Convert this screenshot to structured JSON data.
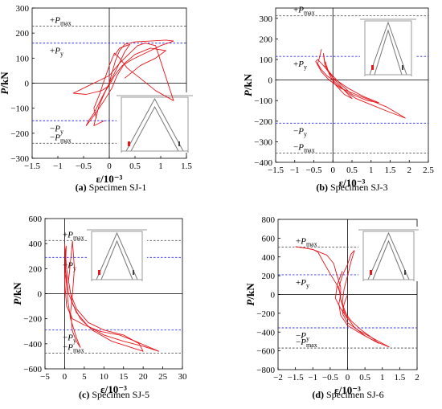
{
  "chart_data": [
    {
      "id": "a",
      "type": "line",
      "caption_letter": "(a)",
      "caption_text": " Specimen SJ-1",
      "ylabel": "P/kN",
      "xlabel": "ε/10⁻³",
      "xlim": [
        -1.5,
        1.5
      ],
      "ylim": [
        -300,
        300
      ],
      "xticks": [
        -1.5,
        -1,
        -0.5,
        0,
        0.5,
        1,
        1.5
      ],
      "yticks": [
        -300,
        -200,
        -100,
        0,
        100,
        200,
        300
      ],
      "series_color": "#e8151b",
      "reference_lines": [
        {
          "label": "+P",
          "sub": "max",
          "y": 228,
          "color": "#555555"
        },
        {
          "label": "+P",
          "sub": "y",
          "y": 160,
          "color": "#3333ee"
        },
        {
          "label": "−P",
          "sub": "y",
          "y": -150,
          "color": "#3333ee"
        },
        {
          "label": "−P",
          "sub": "max",
          "y": -240,
          "color": "#555555"
        }
      ],
      "series": [
        {
          "points": [
            [
              0,
              0
            ],
            [
              0.05,
              40
            ],
            [
              0.12,
              90
            ],
            [
              0.2,
              130
            ],
            [
              0.3,
              155
            ],
            [
              0.5,
              165
            ],
            [
              0.8,
              168
            ],
            [
              1.1,
              172
            ],
            [
              1.25,
              168
            ]
          ]
        },
        {
          "points": [
            [
              1.25,
              168
            ],
            [
              1.0,
              150
            ],
            [
              0.7,
              120
            ],
            [
              0.45,
              95
            ],
            [
              0.25,
              70
            ],
            [
              0.1,
              30
            ],
            [
              0.02,
              0
            ],
            [
              -0.1,
              -40
            ],
            [
              -0.2,
              -80
            ],
            [
              -0.3,
              -120
            ],
            [
              -0.4,
              -150
            ],
            [
              -0.45,
              -170
            ]
          ]
        },
        {
          "points": [
            [
              -0.45,
              -170
            ],
            [
              -0.3,
              -130
            ],
            [
              -0.1,
              -70
            ],
            [
              0.05,
              -20
            ],
            [
              0.15,
              30
            ],
            [
              0.3,
              80
            ],
            [
              0.5,
              115
            ],
            [
              0.8,
              140
            ],
            [
              1.1,
              130
            ],
            [
              0.9,
              100
            ],
            [
              0.6,
              70
            ],
            [
              0.3,
              20
            ]
          ]
        },
        {
          "points": [
            [
              0,
              -10
            ],
            [
              -0.15,
              -30
            ],
            [
              -0.45,
              -45
            ],
            [
              -0.7,
              -40
            ],
            [
              -0.5,
              -20
            ],
            [
              -0.2,
              10
            ],
            [
              0,
              30
            ],
            [
              0.2,
              80
            ],
            [
              0.4,
              120
            ],
            [
              0.55,
              150
            ],
            [
              0.7,
              160
            ],
            [
              0.9,
              150
            ],
            [
              1.25,
              -70
            ]
          ]
        },
        {
          "points": [
            [
              1.25,
              -70
            ],
            [
              0.9,
              -30
            ],
            [
              0.6,
              20
            ],
            [
              0.35,
              60
            ],
            [
              0.2,
              100
            ],
            [
              0.1,
              120
            ],
            [
              0.0,
              70
            ],
            [
              -0.1,
              10
            ],
            [
              -0.2,
              -50
            ],
            [
              -0.3,
              -100
            ],
            [
              -0.25,
              -140
            ]
          ]
        },
        {
          "points": [
            [
              0.1,
              110
            ],
            [
              0.2,
              140
            ],
            [
              0.4,
              155
            ],
            [
              0.3,
              125
            ],
            [
              0.15,
              60
            ],
            [
              -0.05,
              -20
            ],
            [
              -0.2,
              -90
            ],
            [
              -0.3,
              -170
            ],
            [
              -0.1,
              -150
            ]
          ]
        }
      ]
    },
    {
      "id": "b",
      "type": "line",
      "caption_letter": "(b)",
      "caption_text": " Specimen SJ-3",
      "ylabel": "P/kN",
      "xlabel": "ε/10⁻³",
      "xlim": [
        -1.5,
        2.5
      ],
      "ylim": [
        -400,
        350
      ],
      "xticks": [
        -1.5,
        -1,
        -0.5,
        0,
        0.5,
        1,
        1.5,
        2,
        2.5
      ],
      "yticks": [
        -400,
        -300,
        -200,
        -100,
        0,
        100,
        200,
        300
      ],
      "series_color": "#e8151b",
      "reference_lines": [
        {
          "label": "+P",
          "sub": "max",
          "y": 312,
          "color": "#555555"
        },
        {
          "label": "+P",
          "sub": "y",
          "y": 115,
          "color": "#3333ee"
        },
        {
          "label": "−P",
          "sub": "y",
          "y": -210,
          "color": "#3333ee"
        },
        {
          "label": "−P",
          "sub": "max",
          "y": -355,
          "color": "#555555"
        }
      ],
      "series": [
        {
          "points": [
            [
              -0.3,
              150
            ],
            [
              -0.35,
              110
            ],
            [
              -0.4,
              80
            ],
            [
              -0.3,
              50
            ],
            [
              -0.15,
              20
            ],
            [
              0,
              0
            ],
            [
              0.1,
              -20
            ],
            [
              0.3,
              -50
            ],
            [
              0.6,
              -90
            ],
            [
              1.0,
              -120
            ],
            [
              1.4,
              -150
            ],
            [
              1.9,
              -185
            ]
          ]
        },
        {
          "points": [
            [
              1.9,
              -185
            ],
            [
              1.4,
              -130
            ],
            [
              1.0,
              -100
            ],
            [
              0.6,
              -70
            ],
            [
              0.2,
              -40
            ],
            [
              -0.1,
              0
            ],
            [
              -0.3,
              40
            ],
            [
              -0.45,
              90
            ],
            [
              -0.4,
              100
            ]
          ]
        },
        {
          "points": [
            [
              -0.4,
              100
            ],
            [
              -0.2,
              60
            ],
            [
              0.0,
              20
            ],
            [
              0.2,
              -20
            ],
            [
              0.5,
              -70
            ],
            [
              0.9,
              -100
            ],
            [
              1.2,
              -110
            ],
            [
              0.8,
              -80
            ],
            [
              0.4,
              -40
            ],
            [
              0.0,
              10
            ],
            [
              -0.2,
              60
            ],
            [
              -0.25,
              130
            ]
          ]
        },
        {
          "points": [
            [
              -0.25,
              130
            ],
            [
              -0.2,
              70
            ],
            [
              0.0,
              10
            ],
            [
              0.2,
              -30
            ],
            [
              0.35,
              -60
            ],
            [
              0.5,
              -90
            ],
            [
              0.3,
              -70
            ],
            [
              0.05,
              -20
            ],
            [
              -0.1,
              30
            ],
            [
              -0.2,
              90
            ]
          ]
        }
      ]
    },
    {
      "id": "c",
      "type": "line",
      "caption_letter": "(c)",
      "caption_text": " Specimen SJ-5",
      "ylabel": "P/kN",
      "xlabel": "ε/10⁻³",
      "xlim": [
        -5,
        30
      ],
      "ylim": [
        -600,
        600
      ],
      "xticks": [
        -5,
        0,
        5,
        10,
        15,
        20,
        25,
        30
      ],
      "yticks": [
        -600,
        -400,
        -200,
        0,
        200,
        400,
        600
      ],
      "series_color": "#e8151b",
      "reference_lines": [
        {
          "label": "+P",
          "sub": "max",
          "y": 425,
          "color": "#555555"
        },
        {
          "label": "+P",
          "sub": "y",
          "y": 290,
          "color": "#3333ee"
        },
        {
          "label": "−P",
          "sub": "y",
          "y": -290,
          "color": "#3333ee"
        },
        {
          "label": "−P",
          "sub": "max",
          "y": -475,
          "color": "#555555"
        }
      ],
      "series": [
        {
          "points": [
            [
              0,
              0
            ],
            [
              0.2,
              200
            ],
            [
              0.4,
              380
            ],
            [
              0.2,
              300
            ],
            [
              0,
              100
            ],
            [
              0.5,
              -100
            ],
            [
              2,
              -200
            ],
            [
              5,
              -250
            ],
            [
              9,
              -300
            ],
            [
              14,
              -330
            ],
            [
              18,
              -380
            ],
            [
              21,
              -420
            ],
            [
              24,
              -460
            ]
          ]
        },
        {
          "points": [
            [
              24,
              -460
            ],
            [
              20,
              -420
            ],
            [
              15,
              -380
            ],
            [
              10,
              -330
            ],
            [
              6,
              -260
            ],
            [
              3,
              -150
            ],
            [
              1,
              0
            ],
            [
              0.2,
              200
            ],
            [
              0,
              400
            ]
          ]
        },
        {
          "points": [
            [
              0,
              400
            ],
            [
              0.5,
              200
            ],
            [
              1.5,
              0
            ],
            [
              3,
              -120
            ],
            [
              6,
              -230
            ],
            [
              10,
              -290
            ],
            [
              15,
              -330
            ],
            [
              19,
              -400
            ],
            [
              20,
              -460
            ],
            [
              16,
              -420
            ],
            [
              12,
              -380
            ],
            [
              7,
              -290
            ],
            [
              4,
              -200
            ],
            [
              2,
              -80
            ],
            [
              1,
              100
            ],
            [
              2,
              420
            ]
          ]
        },
        {
          "points": [
            [
              2,
              420
            ],
            [
              2.5,
              200
            ],
            [
              2,
              0
            ],
            [
              1.5,
              -150
            ],
            [
              2,
              -300
            ],
            [
              3,
              -380
            ],
            [
              4,
              -430
            ],
            [
              3,
              -350
            ],
            [
              1.5,
              -200
            ],
            [
              0.8,
              -50
            ],
            [
              0.3,
              150
            ]
          ]
        }
      ]
    },
    {
      "id": "d",
      "type": "line",
      "caption_letter": "(d)",
      "caption_text": " Specimen SJ-6",
      "ylabel": "P/kN",
      "xlabel": "ε/10⁻³",
      "xlim": [
        -2,
        2
      ],
      "ylim": [
        -800,
        800
      ],
      "xticks": [
        -2,
        -1.5,
        -1,
        -0.5,
        0,
        0.5,
        1,
        1.5,
        2
      ],
      "yticks": [
        -800,
        -600,
        -400,
        -200,
        0,
        200,
        400,
        600,
        800
      ],
      "series_color": "#e8151b",
      "reference_lines": [
        {
          "label": "+P",
          "sub": "max",
          "y": 505,
          "color": "#555555"
        },
        {
          "label": "+P",
          "sub": "y",
          "y": 210,
          "color": "#3333ee"
        },
        {
          "label": "−P",
          "sub": "y",
          "y": -355,
          "color": "#3333ee"
        },
        {
          "label": "−P",
          "sub": "max",
          "y": -570,
          "color": "#555555"
        }
      ],
      "series": [
        {
          "points": [
            [
              0,
              0
            ],
            [
              -0.1,
              -100
            ],
            [
              -0.15,
              -200
            ],
            [
              0,
              -300
            ],
            [
              0.3,
              -380
            ],
            [
              0.6,
              -440
            ],
            [
              0.9,
              -500
            ],
            [
              1.2,
              -560
            ]
          ]
        },
        {
          "points": [
            [
              1.2,
              -560
            ],
            [
              0.8,
              -500
            ],
            [
              0.4,
              -420
            ],
            [
              0.0,
              -330
            ],
            [
              -0.2,
              -220
            ],
            [
              -0.25,
              -100
            ],
            [
              -0.2,
              0
            ],
            [
              -0.3,
              100
            ],
            [
              -0.5,
              220
            ],
            [
              -0.7,
              350
            ],
            [
              -0.85,
              450
            ],
            [
              -1.0,
              480
            ],
            [
              -1.5,
              510
            ]
          ]
        },
        {
          "points": [
            [
              -1.5,
              510
            ],
            [
              -1.0,
              480
            ],
            [
              -0.6,
              420
            ],
            [
              -0.4,
              330
            ],
            [
              -0.3,
              200
            ],
            [
              -0.2,
              80
            ],
            [
              -0.2,
              -50
            ],
            [
              -0.1,
              -180
            ],
            [
              0.1,
              -280
            ],
            [
              0.4,
              -380
            ],
            [
              0.7,
              -460
            ],
            [
              0.9,
              -520
            ]
          ]
        },
        {
          "points": [
            [
              0.9,
              -520
            ],
            [
              0.5,
              -440
            ],
            [
              0.2,
              -350
            ],
            [
              0.0,
              -250
            ],
            [
              -0.1,
              -150
            ],
            [
              -0.2,
              -50
            ],
            [
              -0.25,
              80
            ],
            [
              -0.15,
              200
            ],
            [
              0.0,
              320
            ],
            [
              0.1,
              430
            ],
            [
              0.2,
              470
            ]
          ]
        },
        {
          "points": [
            [
              0.2,
              470
            ],
            [
              0.1,
              350
            ],
            [
              0.0,
              200
            ],
            [
              -0.1,
              60
            ],
            [
              -0.15,
              -80
            ],
            [
              -0.1,
              -200
            ],
            [
              0.0,
              -260
            ],
            [
              -0.2,
              -150
            ],
            [
              -0.35,
              -40
            ],
            [
              -0.3,
              100
            ],
            [
              -0.15,
              250
            ]
          ]
        }
      ]
    }
  ]
}
